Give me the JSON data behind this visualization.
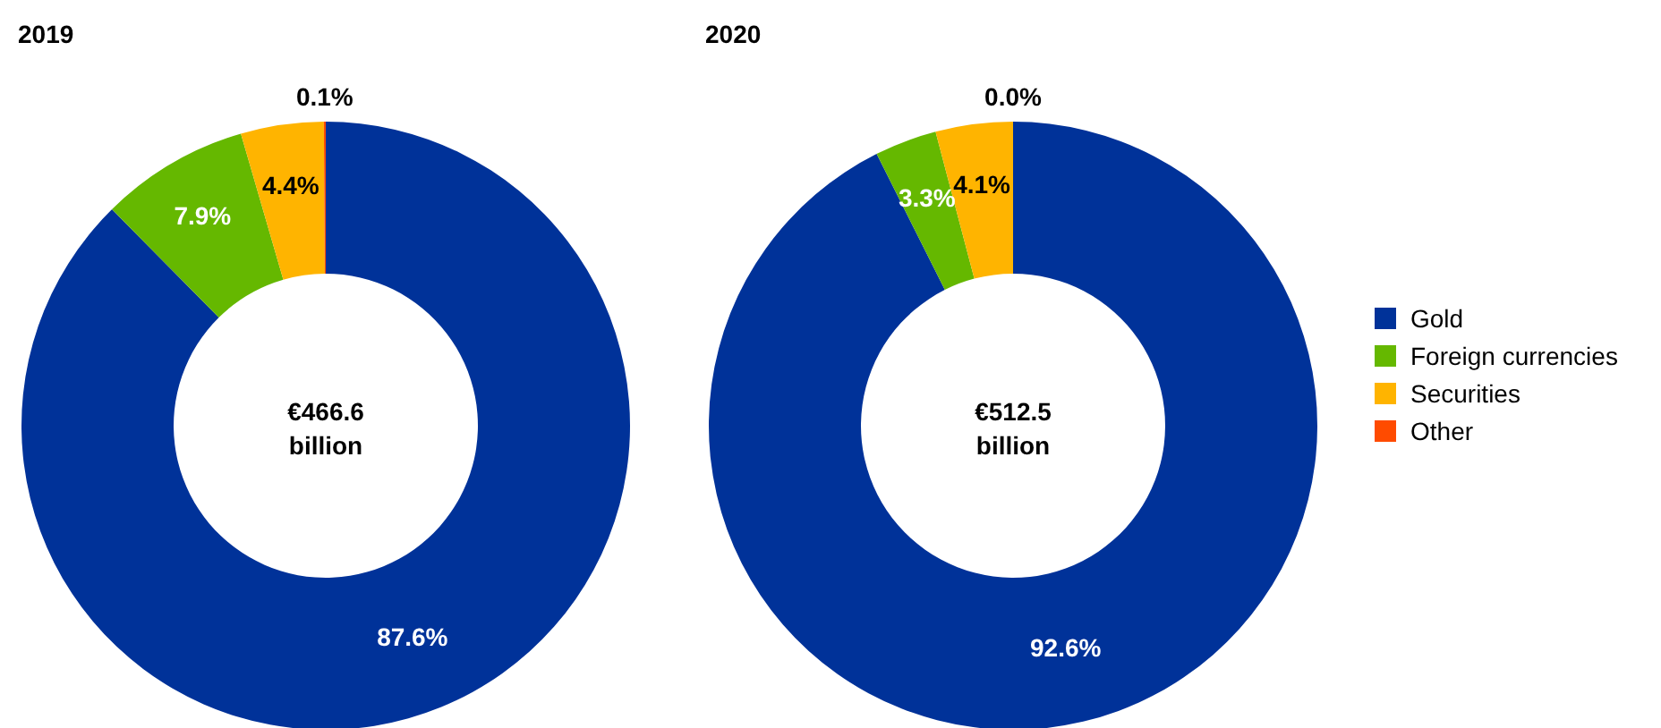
{
  "chart_data": [
    {
      "type": "donut",
      "title": "2019",
      "categories": [
        null,
        null,
        null,
        null
      ],
      "values": [
        87.6,
        7.9,
        4.4,
        0.1
      ],
      "colors": [
        "#003299",
        "#65b800",
        "#ffb400",
        "#ff4b00"
      ],
      "value_labels": [
        "87.6%",
        "7.9%",
        "4.4%",
        "0.1%"
      ],
      "annotations": [
        "€466.6 billion"
      ],
      "legend": false
    },
    {
      "type": "donut",
      "title": "2020",
      "categories": [
        "Gold",
        "Foreign currencies",
        "Securities",
        "Other"
      ],
      "values": [
        92.6,
        3.3,
        4.1,
        0.0
      ],
      "colors": [
        "#003299",
        "#65b800",
        "#ffb400",
        "#ff4b00"
      ],
      "value_labels": [
        "92.6%",
        "3.3%",
        "4.1%",
        "0.0%"
      ],
      "annotations": [
        "€512.5 billion"
      ],
      "legend": "right"
    }
  ]
}
